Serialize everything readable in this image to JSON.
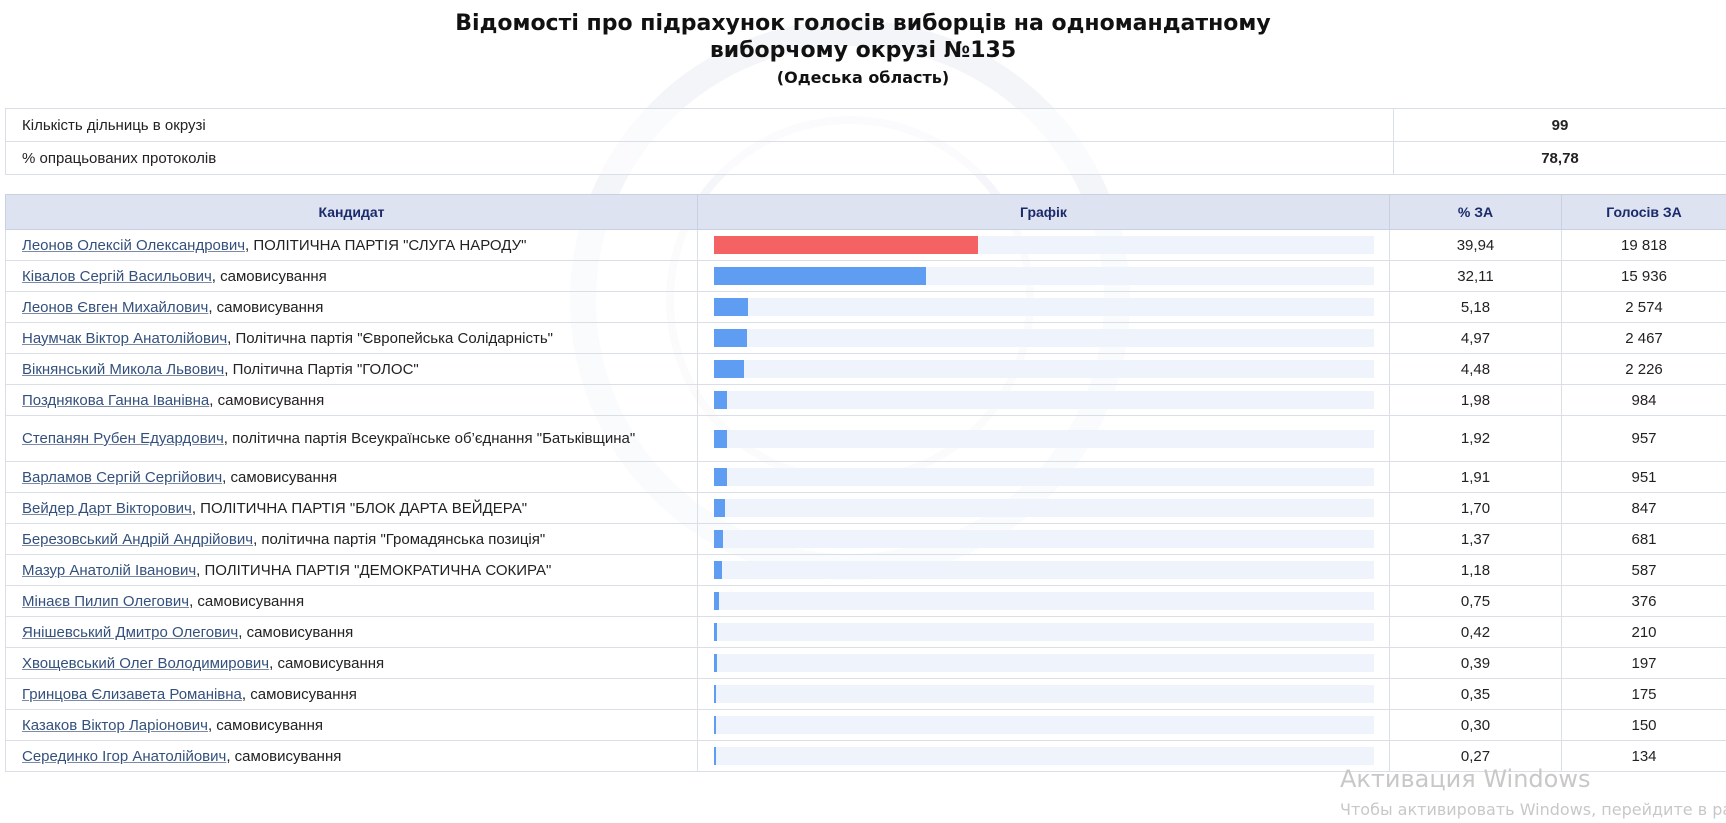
{
  "header": {
    "title_line1": "Відомості про підрахунок голосів виборців на одномандатному",
    "title_line2": "виборчому окрузі №135",
    "region": "(Одеська область)"
  },
  "summary": [
    {
      "label": "Кількість дільниць в окрузі",
      "value": "99"
    },
    {
      "label": "% опрацьованих протоколів",
      "value": "78,78"
    }
  ],
  "columns": {
    "candidate": "Кандидат",
    "chart": "Графік",
    "percent": "% ЗА",
    "votes": "Голосів ЗА"
  },
  "candidates": [
    {
      "name": "Леонов Олексій Олександрович",
      "party": ", ПОЛІТИЧНА ПАРТІЯ \"СЛУГА НАРОДУ\"",
      "percent": "39,94",
      "votes": "19 818",
      "share": 39.94,
      "leader": true
    },
    {
      "name": "Ківалов Сергій Васильович",
      "party": ", самовисування",
      "percent": "32,11",
      "votes": "15 936",
      "share": 32.11
    },
    {
      "name": "Леонов Євген Михайлович",
      "party": ", самовисування",
      "percent": "5,18",
      "votes": "2 574",
      "share": 5.18
    },
    {
      "name": "Наумчак Віктор Анатолійович",
      "party": ", Політична партія \"Європейська Солідарність\"",
      "percent": "4,97",
      "votes": "2 467",
      "share": 4.97
    },
    {
      "name": "Вікнянський Микола Львович",
      "party": ", Політична Партія \"ГОЛОС\"",
      "percent": "4,48",
      "votes": "2 226",
      "share": 4.48
    },
    {
      "name": "Позднякова Ганна Іванівна",
      "party": ", самовисування",
      "percent": "1,98",
      "votes": "984",
      "share": 1.98
    },
    {
      "name": "Степанян Рубен Едуардович",
      "party": ", політична партія Всеукраїнське об’єднання \"Батьківщина\"",
      "percent": "1,92",
      "votes": "957",
      "share": 1.92
    },
    {
      "name": "Варламов Сергій Сергійович",
      "party": ", самовисування",
      "percent": "1,91",
      "votes": "951",
      "share": 1.91
    },
    {
      "name": "Вейдер Дарт Вікторович",
      "party": ", ПОЛІТИЧНА ПАРТІЯ \"БЛОК ДАРТА ВЕЙДЕРА\"",
      "percent": "1,70",
      "votes": "847",
      "share": 1.7
    },
    {
      "name": "Березовський Андрій Андрійович",
      "party": ", політична партія \"Громадянська позиція\"",
      "percent": "1,37",
      "votes": "681",
      "share": 1.37
    },
    {
      "name": "Мазур Анатолій Іванович",
      "party": ", ПОЛІТИЧНА ПАРТІЯ \"ДЕМОКРАТИЧНА СОКИРА\"",
      "percent": "1,18",
      "votes": "587",
      "share": 1.18
    },
    {
      "name": "Мінаєв Пилип Олегович",
      "party": ", самовисування",
      "percent": "0,75",
      "votes": "376",
      "share": 0.75
    },
    {
      "name": "Янішевський Дмитро Олегович",
      "party": ", самовисування",
      "percent": "0,42",
      "votes": "210",
      "share": 0.42
    },
    {
      "name": "Хвощевський Олег Володимирович",
      "party": ", самовисування",
      "percent": "0,39",
      "votes": "197",
      "share": 0.39
    },
    {
      "name": "Гринцова Єлизавета Романівна",
      "party": ", самовисування",
      "percent": "0,35",
      "votes": "175",
      "share": 0.35
    },
    {
      "name": "Казаков Віктор Ларіонович",
      "party": ", самовисування",
      "percent": "0,30",
      "votes": "150",
      "share": 0.3
    },
    {
      "name": "Серединко Ігор Анатолійович",
      "party": ", самовисування",
      "percent": "0,27",
      "votes": "134",
      "share": 0.27
    }
  ],
  "os_overlay": {
    "activate_title": "Активация Windows",
    "activate_hint": "Чтобы активировать Windows, перейдите в раздел"
  },
  "colors": {
    "leader_bar": "#f56264",
    "bar": "#5e9df1",
    "bar_track": "#eef3fc",
    "header_bg": "#dde3f1",
    "header_text": "#1b2a6b",
    "link": "#34507c"
  }
}
